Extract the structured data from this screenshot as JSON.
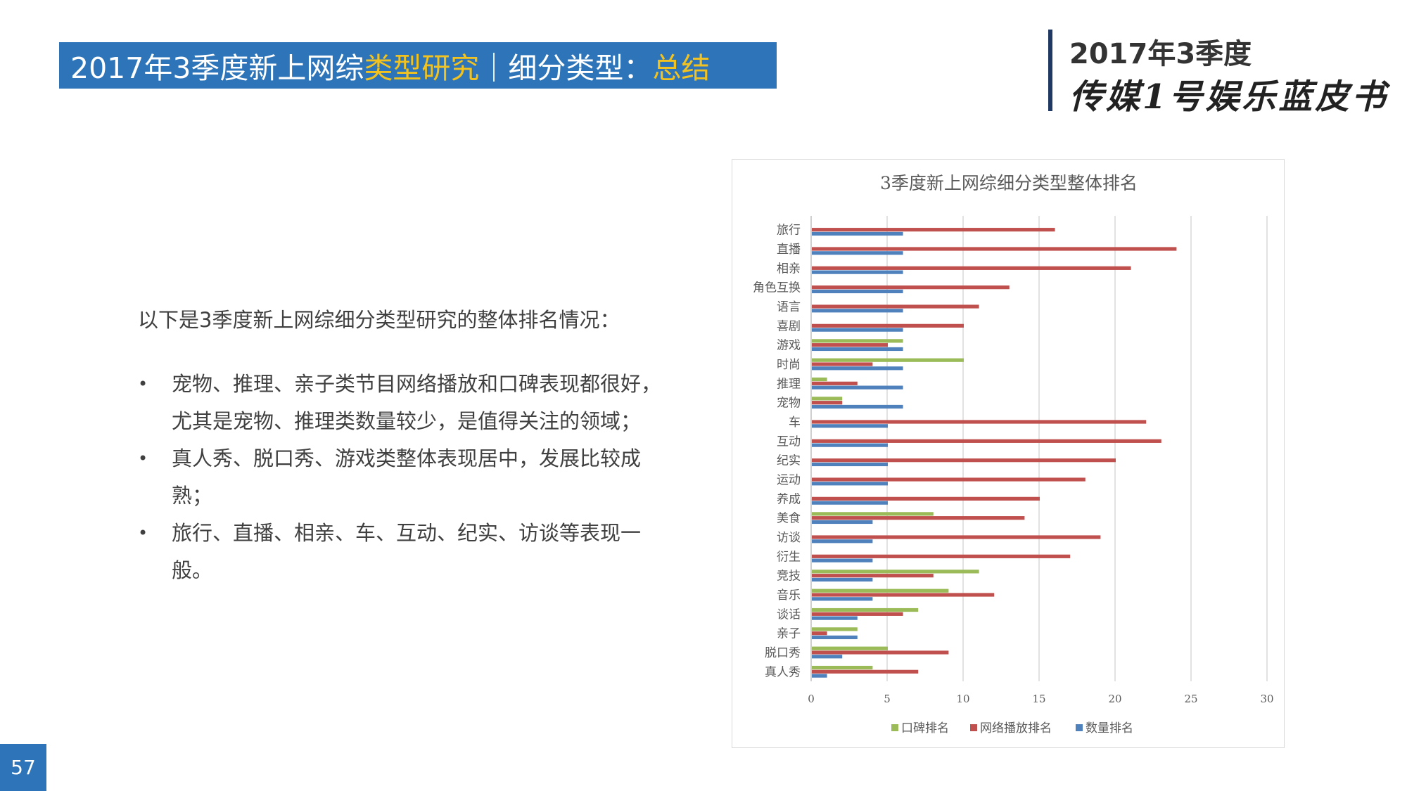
{
  "header": {
    "title_part1": "2017年3季度新上网综",
    "title_part2": "类型研究",
    "title_part3": "｜细分类型：",
    "title_part4": "总结"
  },
  "brand": {
    "year": "2017年3季度",
    "name": "传媒1号娱乐蓝皮书"
  },
  "content": {
    "intro": "以下是3季度新上网综细分类型研究的整体排名情况：",
    "bullets": [
      "宠物、推理、亲子类节目网络播放和口碑表现都很好，尤其是宠物、推理类数量较少，是值得关注的领域；",
      "真人秀、脱口秀、游戏类整体表现居中，发展比较成熟；",
      "旅行、直播、相亲、车、互动、纪实、访谈等表现一般。"
    ]
  },
  "page_number": "57",
  "chart_data": {
    "type": "bar",
    "orientation": "horizontal",
    "title": "3季度新上网综细分类型整体排名",
    "categories": [
      "旅行",
      "直播",
      "相亲",
      "角色互换",
      "语言",
      "喜剧",
      "游戏",
      "时尚",
      "推理",
      "宠物",
      "车",
      "互动",
      "纪实",
      "运动",
      "养成",
      "美食",
      "访谈",
      "衍生",
      "竞技",
      "音乐",
      "谈话",
      "亲子",
      "脱口秀",
      "真人秀"
    ],
    "series": [
      {
        "name": "口碑排名",
        "color": "#9bbb59",
        "values": [
          null,
          null,
          null,
          null,
          null,
          null,
          6,
          10,
          1,
          2,
          null,
          null,
          null,
          null,
          null,
          8,
          null,
          null,
          11,
          9,
          7,
          3,
          5,
          4
        ]
      },
      {
        "name": "网络播放排名",
        "color": "#c0504d",
        "values": [
          16,
          24,
          21,
          13,
          11,
          10,
          5,
          4,
          3,
          2,
          22,
          23,
          20,
          18,
          15,
          14,
          19,
          17,
          8,
          12,
          6,
          1,
          9,
          7
        ]
      },
      {
        "name": "数量排名",
        "color": "#4f81bd",
        "values": [
          6,
          6,
          6,
          6,
          6,
          6,
          6,
          6,
          6,
          6,
          5,
          5,
          5,
          5,
          5,
          4,
          4,
          4,
          4,
          4,
          3,
          3,
          2,
          1
        ]
      }
    ],
    "xlim": [
      0,
      30
    ],
    "xticks": [
      0,
      5,
      10,
      15,
      20,
      25,
      30
    ],
    "grid": true,
    "legend": "bottom"
  }
}
